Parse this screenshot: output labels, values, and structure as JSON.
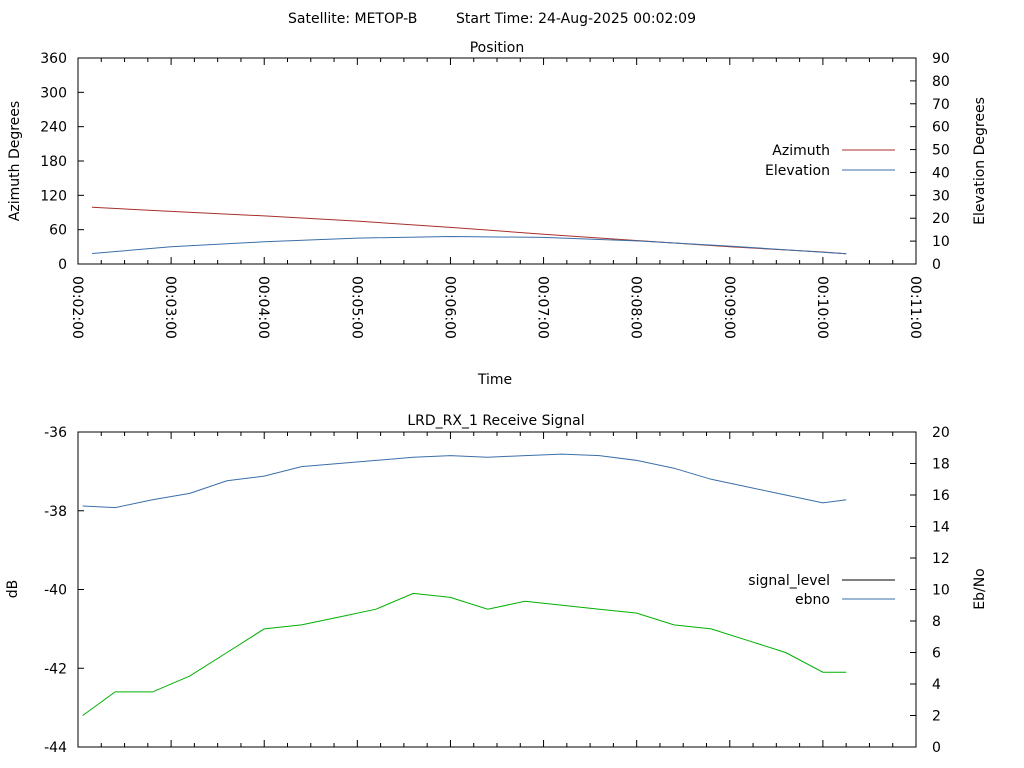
{
  "header": {
    "satellite_label": "Satellite: METOP-B",
    "start_time_label": "Start Time: 24-Aug-2025 00:02:09"
  },
  "chart_data": [
    {
      "type": "line",
      "title": "Position",
      "xlabel": "Time",
      "ylabel": "Azimuth Degrees",
      "y2label": "Elevation Degrees",
      "x_ticks": [
        "00:02:00",
        "00:03:00",
        "00:04:00",
        "00:05:00",
        "00:06:00",
        "00:07:00",
        "00:08:00",
        "00:09:00",
        "00:10:00",
        "00:11:00"
      ],
      "ylim": [
        0,
        360
      ],
      "y_ticks": [
        0,
        60,
        120,
        180,
        240,
        300,
        360
      ],
      "y2lim": [
        0,
        90
      ],
      "y2_ticks": [
        0,
        10,
        20,
        30,
        40,
        50,
        60,
        70,
        80,
        90
      ],
      "xlim_minutes": [
        2,
        11
      ],
      "legend_position": "right",
      "grid": false,
      "series": [
        {
          "name": "Azimuth",
          "color": "#a8302c",
          "axis": "left",
          "x_minutes": [
            2.15,
            3,
            4,
            5,
            6,
            7,
            8,
            9,
            10,
            10.25
          ],
          "values": [
            99,
            92,
            84,
            75,
            64,
            52,
            41,
            30,
            21,
            18
          ]
        },
        {
          "name": "Elevation",
          "color": "#3a6fa8",
          "axis": "right",
          "x_minutes": [
            2.15,
            3,
            4,
            5,
            6,
            7,
            8,
            9,
            10,
            10.25
          ],
          "values": [
            4.6,
            7.5,
            9.7,
            11.3,
            12.0,
            11.6,
            10.1,
            7.8,
            5.1,
            4.5
          ]
        }
      ]
    },
    {
      "type": "line",
      "title": "LRD_RX_1 Receive Signal",
      "xlabel": "",
      "ylabel": "dB",
      "y2label": "Eb/No",
      "ylim": [
        -44,
        -36
      ],
      "y_ticks": [
        -44,
        -42,
        -40,
        -38,
        -36
      ],
      "y2lim": [
        0,
        20
      ],
      "y2_ticks": [
        0,
        2,
        4,
        6,
        8,
        10,
        12,
        14,
        16,
        18,
        20
      ],
      "xlim_minutes": [
        2,
        11
      ],
      "legend_position": "right",
      "grid": false,
      "series": [
        {
          "name": "signal_level",
          "color": "#00b000",
          "legend_color": "#000000",
          "axis": "left",
          "x_minutes": [
            2.05,
            2.4,
            2.8,
            3.2,
            3.6,
            4.0,
            4.4,
            4.8,
            5.2,
            5.6,
            6.0,
            6.4,
            6.8,
            7.2,
            7.6,
            8.0,
            8.4,
            8.8,
            9.2,
            9.6,
            10.0,
            10.25
          ],
          "values": [
            -43.2,
            -42.6,
            -42.6,
            -42.2,
            -41.6,
            -41.0,
            -40.9,
            -40.7,
            -40.5,
            -40.1,
            -40.2,
            -40.5,
            -40.3,
            -40.4,
            -40.5,
            -40.6,
            -40.9,
            -41.0,
            -41.3,
            -41.6,
            -42.1,
            -42.1
          ]
        },
        {
          "name": "ebno",
          "color": "#3a6fa8",
          "axis": "right",
          "x_minutes": [
            2.05,
            2.4,
            2.8,
            3.2,
            3.6,
            4.0,
            4.4,
            4.8,
            5.2,
            5.6,
            6.0,
            6.4,
            6.8,
            7.2,
            7.6,
            8.0,
            8.4,
            8.8,
            9.2,
            9.6,
            10.0,
            10.25
          ],
          "values": [
            15.3,
            15.2,
            15.7,
            16.1,
            16.9,
            17.2,
            17.8,
            18.0,
            18.2,
            18.4,
            18.5,
            18.4,
            18.5,
            18.6,
            18.5,
            18.2,
            17.7,
            17.0,
            16.5,
            16.0,
            15.5,
            15.7
          ]
        }
      ]
    }
  ]
}
